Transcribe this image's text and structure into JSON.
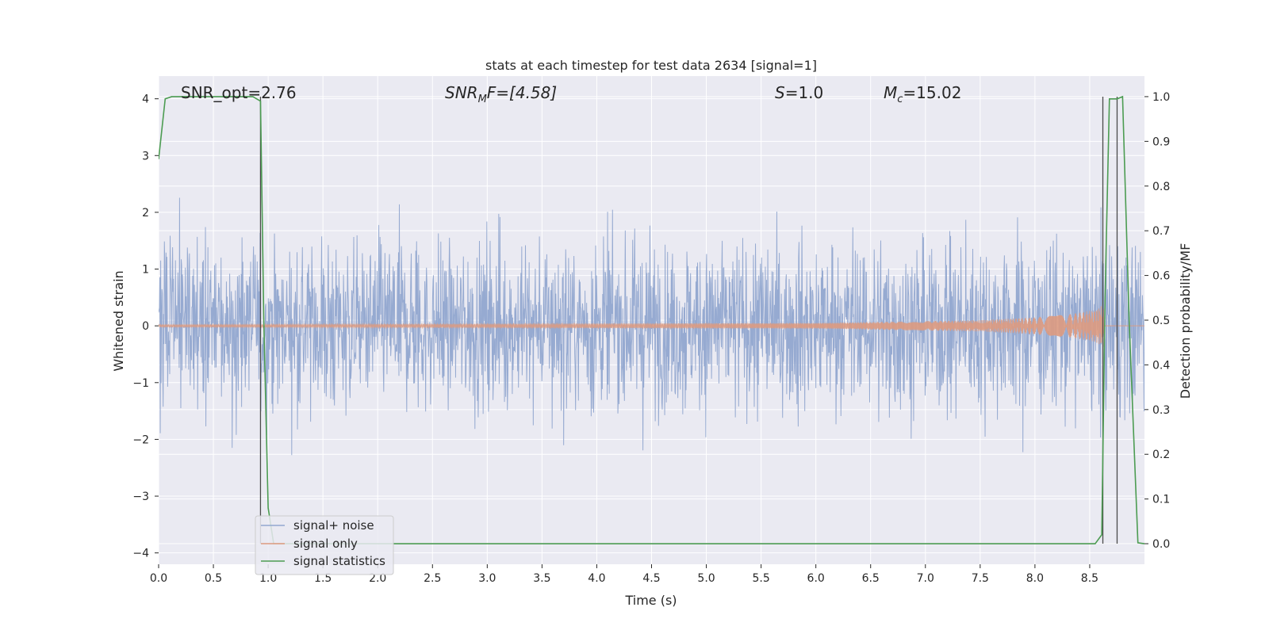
{
  "chart_data": {
    "type": "line",
    "title": "stats at each timestep for test data 2634 [signal=1]",
    "xlabel": "Time (s)",
    "ylabel": "Whitened strain",
    "y2label": "Detection probability/MF",
    "xlim": [
      0.0,
      9.0
    ],
    "ylim": [
      -4.2,
      4.4
    ],
    "y2lim": [
      -0.046,
      1.046
    ],
    "x_ticks": [
      "0.0",
      "0.5",
      "1.0",
      "1.5",
      "2.0",
      "2.5",
      "3.0",
      "3.5",
      "4.0",
      "4.5",
      "5.0",
      "5.5",
      "6.0",
      "6.5",
      "7.0",
      "7.5",
      "8.0",
      "8.5"
    ],
    "y_ticks": [
      "4",
      "3",
      "2",
      "1",
      "0",
      "−1",
      "−2",
      "−3",
      "−4"
    ],
    "y2_ticks": [
      "1.0",
      "0.9",
      "0.8",
      "0.7",
      "0.6",
      "0.5",
      "0.4",
      "0.3",
      "0.2",
      "0.1",
      "0.0"
    ],
    "grid": true,
    "legend_position": "lower-left",
    "annotations": {
      "snr_opt": "SNR_opt=2.76",
      "snr_mf_name": "SNR",
      "snr_mf_sub": "M",
      "snr_mf_rest": "F=[4.58]",
      "s_name": "S",
      "s_rest": "=1.0",
      "mc_name": "M",
      "mc_sub": "c",
      "mc_rest": "=15.02"
    },
    "series": [
      {
        "name": "signal+ noise",
        "color": "#91A7CF",
        "description_values": "whitened noise, approx |y| up to 3.8",
        "amplitude_envelope": [
          [
            0.0,
            3.3
          ],
          [
            9.0,
            3.3
          ]
        ]
      },
      {
        "name": "signal only",
        "color": "#DD9A7F",
        "chirp_envelope": [
          [
            0.0,
            0.02
          ],
          [
            6.0,
            0.05
          ],
          [
            7.5,
            0.1
          ],
          [
            8.0,
            0.15
          ],
          [
            8.3,
            0.2
          ],
          [
            8.55,
            0.28
          ],
          [
            8.63,
            0.38
          ]
        ]
      },
      {
        "name": "signal statistics",
        "color": "#4C9C52",
        "axis": "right",
        "x": [
          0.0,
          0.06,
          0.12,
          0.3,
          0.5,
          0.7,
          0.86,
          0.93,
          0.96,
          1.0,
          1.05,
          2.0,
          4.0,
          6.0,
          8.0,
          8.4,
          8.55,
          8.61,
          8.64,
          8.68,
          8.75,
          8.8,
          8.86,
          8.94,
          9.0
        ],
        "y": [
          0.86,
          0.995,
          1.0,
          1.0,
          1.0,
          1.0,
          1.0,
          0.99,
          0.5,
          0.08,
          0.0,
          0.0,
          0.0,
          0.0,
          0.0,
          0.0,
          0.0,
          0.02,
          0.55,
          0.995,
          0.995,
          1.0,
          0.5,
          0.002,
          0.0
        ]
      }
    ],
    "vertical_markers": [
      0.93,
      8.62,
      8.75
    ],
    "marker_color": "#4b4b4b"
  }
}
